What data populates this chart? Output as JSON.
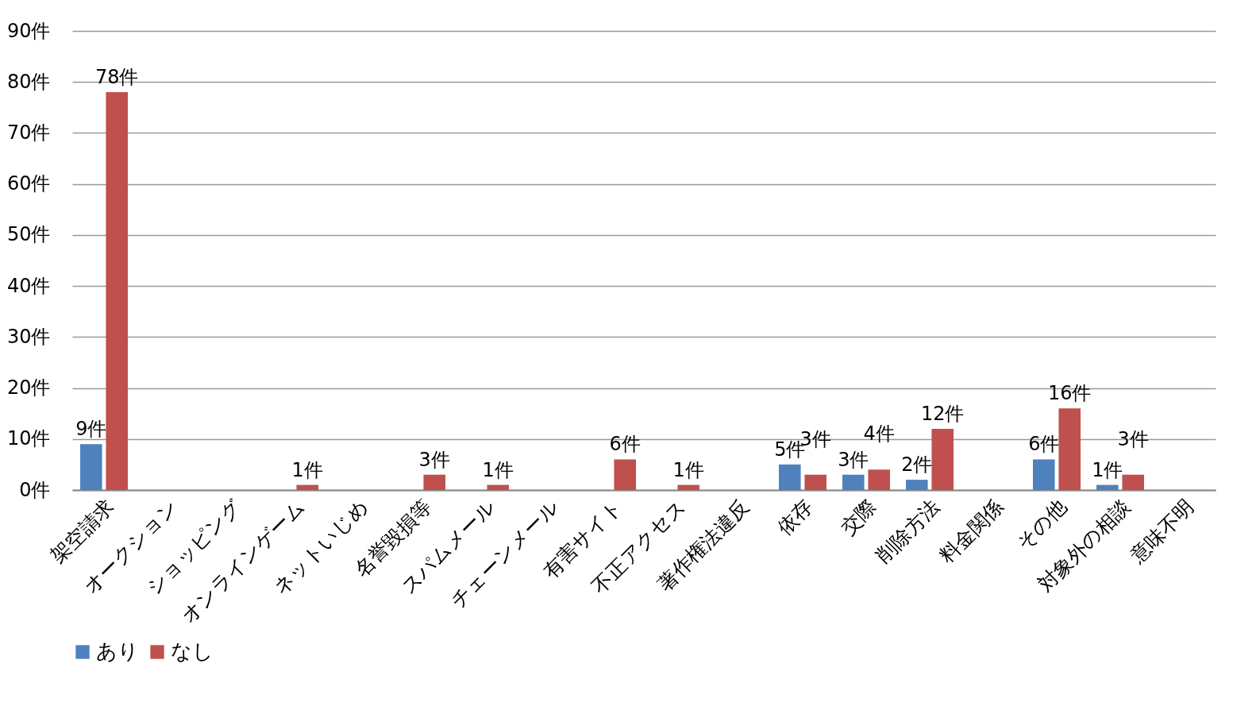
{
  "chart_data": {
    "type": "bar",
    "categories": [
      "架空請求",
      "オークション",
      "ショッピング",
      "オンラインゲーム",
      "ネットいじめ",
      "名誉毀損等",
      "スパムメール",
      "チェーンメール",
      "有害サイト",
      "不正アクセス",
      "著作権法違反",
      "依存",
      "交際",
      "削除方法",
      "料金関係",
      "その他",
      "対象外の相談",
      "意味不明"
    ],
    "series": [
      {
        "name": "あり",
        "color": "#4f81bd",
        "values": [
          9,
          null,
          null,
          null,
          null,
          null,
          null,
          null,
          null,
          null,
          null,
          5,
          3,
          2,
          null,
          6,
          1,
          null
        ],
        "value_labels": [
          "9件",
          null,
          null,
          null,
          null,
          null,
          null,
          null,
          null,
          null,
          null,
          "5件",
          "3件",
          "2件",
          null,
          "6件",
          "1件",
          null
        ]
      },
      {
        "name": "なし",
        "color": "#c0504d",
        "values": [
          78,
          null,
          null,
          1,
          null,
          3,
          1,
          null,
          6,
          1,
          null,
          3,
          4,
          12,
          null,
          16,
          3,
          null
        ],
        "value_labels": [
          "78件",
          null,
          null,
          "1件",
          null,
          "3件",
          "1件",
          null,
          "6件",
          "1件",
          null,
          "3件",
          "4件",
          "12件",
          null,
          "16件",
          "3件",
          null
        ]
      }
    ],
    "ylim": [
      0,
      90
    ],
    "yticks": [
      {
        "value": 0,
        "label": "0件"
      },
      {
        "value": 10,
        "label": "10件"
      },
      {
        "value": 20,
        "label": "20件"
      },
      {
        "value": 30,
        "label": "30件"
      },
      {
        "value": 40,
        "label": "40件"
      },
      {
        "value": 50,
        "label": "50件"
      },
      {
        "value": 60,
        "label": "60件"
      },
      {
        "value": 70,
        "label": "70件"
      },
      {
        "value": 80,
        "label": "80件"
      },
      {
        "value": 90,
        "label": "90件"
      }
    ],
    "grid": "y",
    "legend": "bottom"
  }
}
